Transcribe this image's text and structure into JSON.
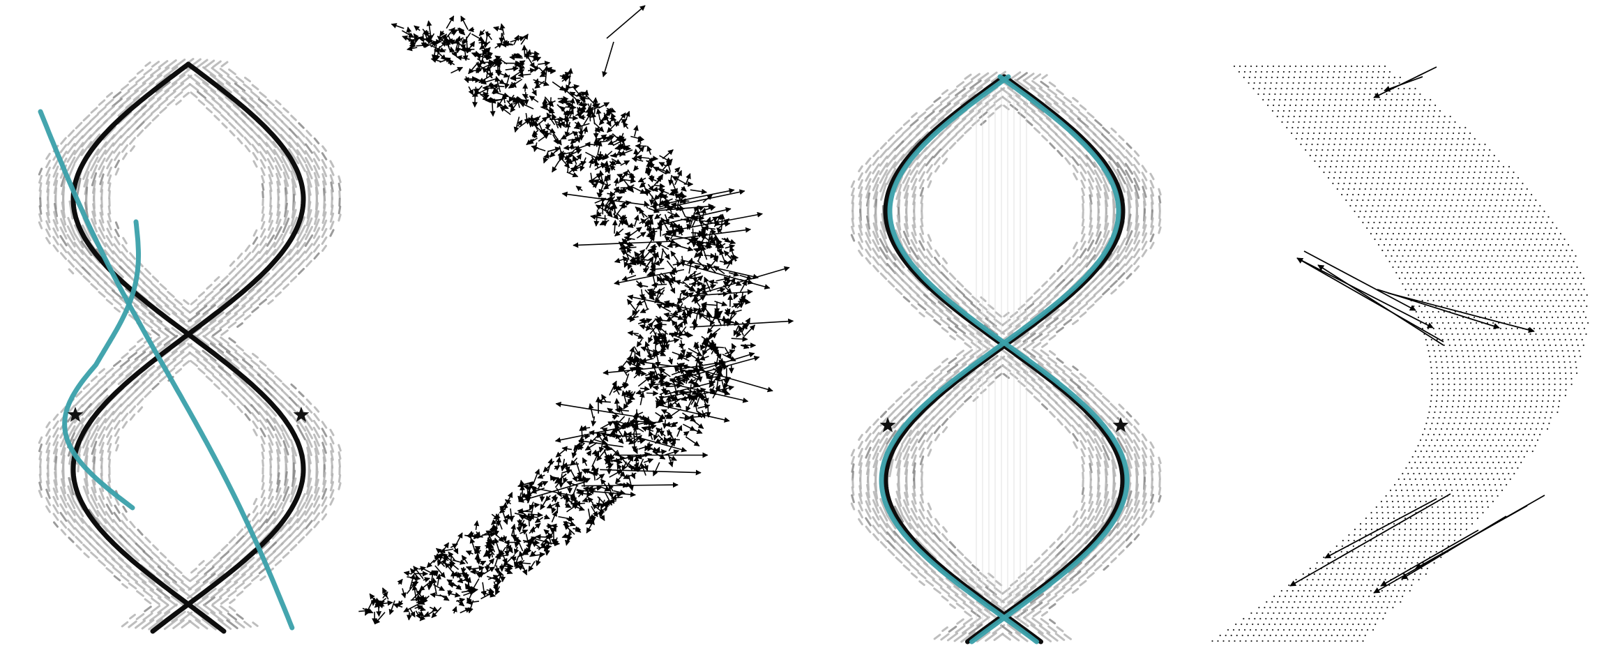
{
  "figure": {
    "panel_count": 4,
    "background": "#ffffff",
    "colors": {
      "glyph": "#b3b3b3",
      "glyph_dark": "#8a8a8a",
      "ground_truth": "#0d0d0d",
      "prediction": "#3aa0aa",
      "arrow": "#000000",
      "dot": "#222222"
    }
  },
  "panels": [
    {
      "id": "panel-1",
      "content": [
        "orientation-field",
        "double-helix-curves",
        "teal-trajectories",
        "star-markers"
      ],
      "star_count": 2
    },
    {
      "id": "panel-2",
      "content": [
        "s-shaped-band",
        "dense-arrow-field"
      ]
    },
    {
      "id": "panel-3",
      "content": [
        "orientation-field",
        "double-helix-curves",
        "teal-trajectories",
        "star-markers"
      ],
      "star_count": 2
    },
    {
      "id": "panel-4",
      "content": [
        "s-shaped-dot-grid",
        "sparse-arrows"
      ]
    }
  ]
}
